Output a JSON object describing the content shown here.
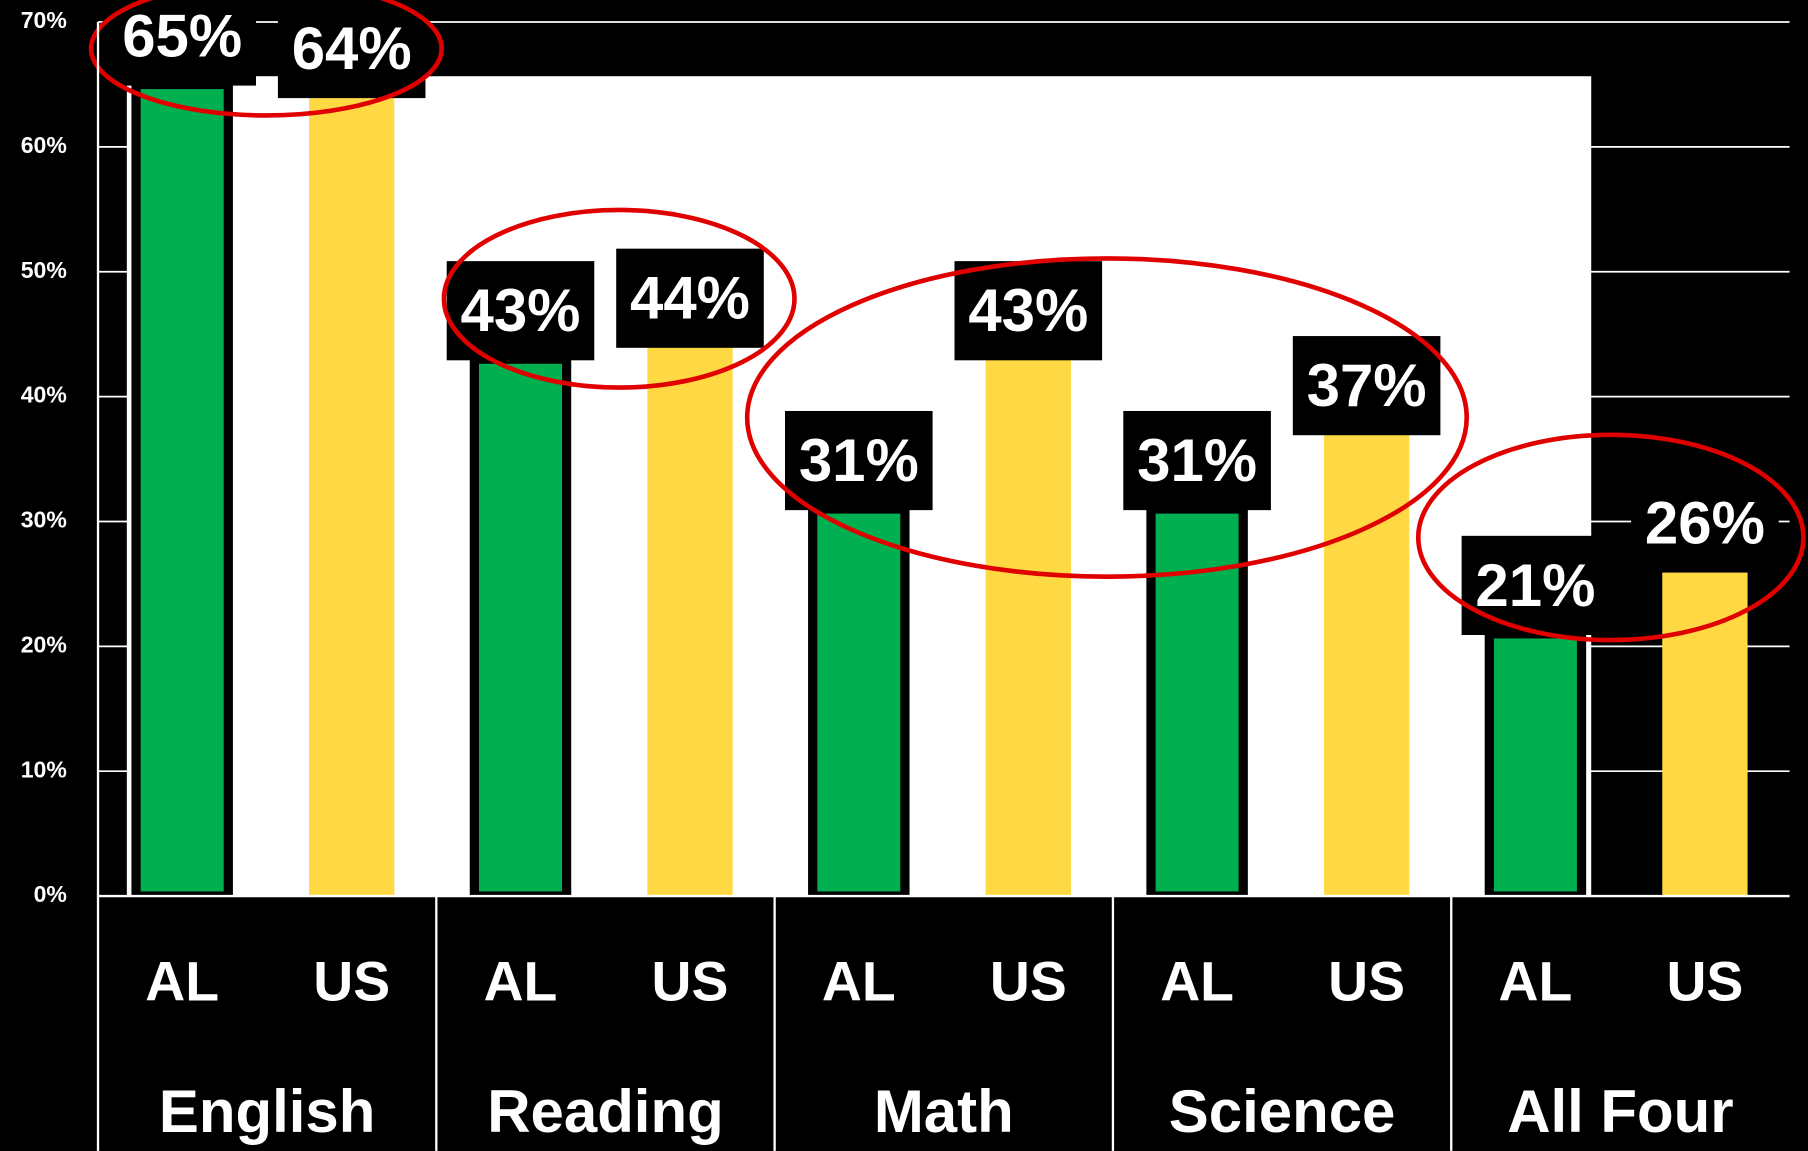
{
  "chart_data": {
    "type": "bar",
    "categories": [
      "English",
      "Reading",
      "Math",
      "Science",
      "All Four"
    ],
    "series": [
      {
        "name": "AL",
        "color": "#00b050",
        "values": [
          65,
          43,
          31,
          31,
          21
        ],
        "value_labels": [
          "65%",
          "43%",
          "31%",
          "31%",
          "21%"
        ]
      },
      {
        "name": "US",
        "color": "#ffd944",
        "values": [
          64,
          44,
          43,
          37,
          26
        ],
        "value_labels": [
          "64%",
          "44%",
          "43%",
          "37%",
          "26%"
        ]
      }
    ],
    "ylim": [
      0,
      70
    ],
    "yticks": [
      {
        "value": 0,
        "label": "0%"
      },
      {
        "value": 10,
        "label": "10%"
      },
      {
        "value": 20,
        "label": "20%"
      },
      {
        "value": 30,
        "label": "30%"
      },
      {
        "value": 40,
        "label": "40%"
      },
      {
        "value": 50,
        "label": "50%"
      },
      {
        "value": 60,
        "label": "60%"
      },
      {
        "value": 70,
        "label": "70%"
      }
    ],
    "grid": true
  }
}
